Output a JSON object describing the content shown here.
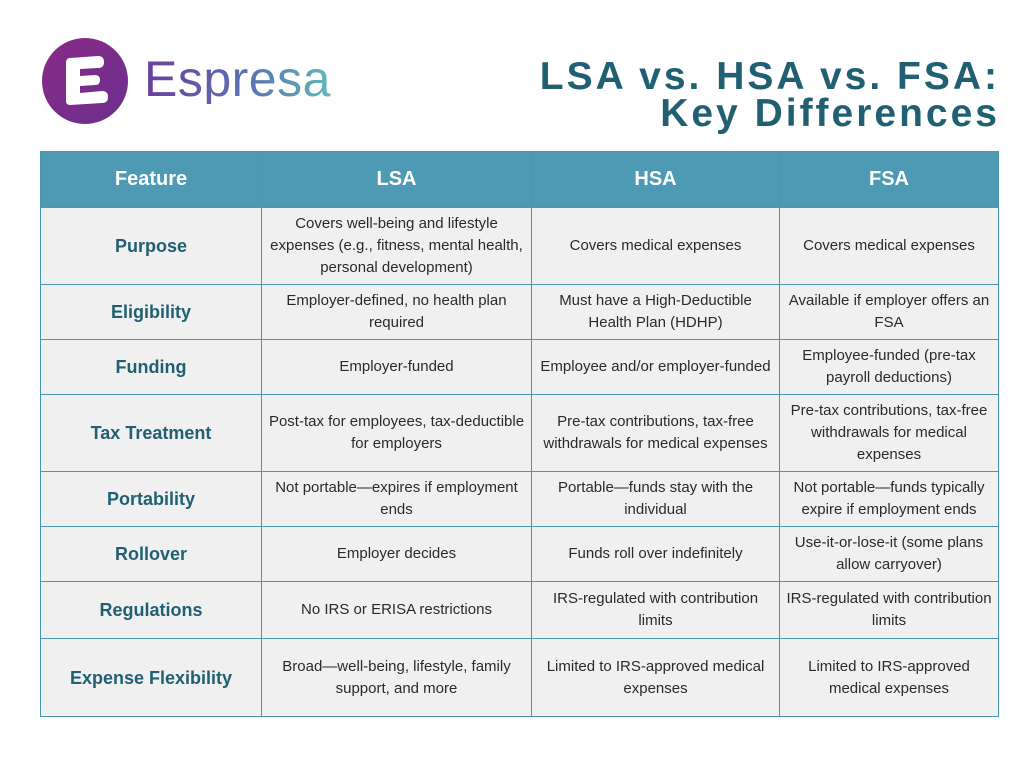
{
  "brand": {
    "name": "Espresa"
  },
  "title": {
    "line1": "LSA vs. HSA vs. FSA:",
    "line2": "Key Differences"
  },
  "table": {
    "headers": [
      "Feature",
      "LSA",
      "HSA",
      "FSA"
    ],
    "rows": [
      {
        "feature": "Purpose",
        "lsa": "Covers well-being and lifestyle expenses (e.g., fitness, mental health, personal development)",
        "hsa": "Covers medical expenses",
        "fsa": "Covers medical expenses"
      },
      {
        "feature": "Eligibility",
        "lsa": "Employer-defined, no health plan required",
        "hsa": "Must have a High-Deductible Health Plan (HDHP)",
        "fsa": "Available if employer offers an FSA"
      },
      {
        "feature": "Funding",
        "lsa": "Employer-funded",
        "hsa": "Employee and/or employer-funded",
        "fsa": "Employee-funded (pre-tax payroll deductions)"
      },
      {
        "feature": "Tax Treatment",
        "lsa": "Post-tax for employees, tax-deductible for employers",
        "hsa": "Pre-tax contributions, tax-free withdrawals for medical expenses",
        "fsa": "Pre-tax contributions, tax-free withdrawals for medical expenses"
      },
      {
        "feature": "Portability",
        "lsa": "Not portable—expires if employment ends",
        "hsa": "Portable—funds stay with the individual",
        "fsa": "Not portable—funds typically expire if employment ends"
      },
      {
        "feature": "Rollover",
        "lsa": "Employer decides",
        "hsa": "Funds roll over indefinitely",
        "fsa": "Use-it-or-lose-it (some plans allow carryover)"
      },
      {
        "feature": "Regulations",
        "lsa": "No IRS or ERISA restrictions",
        "hsa": "IRS-regulated with contribution limits",
        "fsa": "IRS-regulated with contribution limits"
      },
      {
        "feature": "Expense Flexibility",
        "lsa": "Broad—well-being, lifestyle, family support, and more",
        "hsa": "Limited to IRS-approved medical expenses",
        "fsa": "Limited to IRS-approved medical expenses"
      }
    ]
  }
}
